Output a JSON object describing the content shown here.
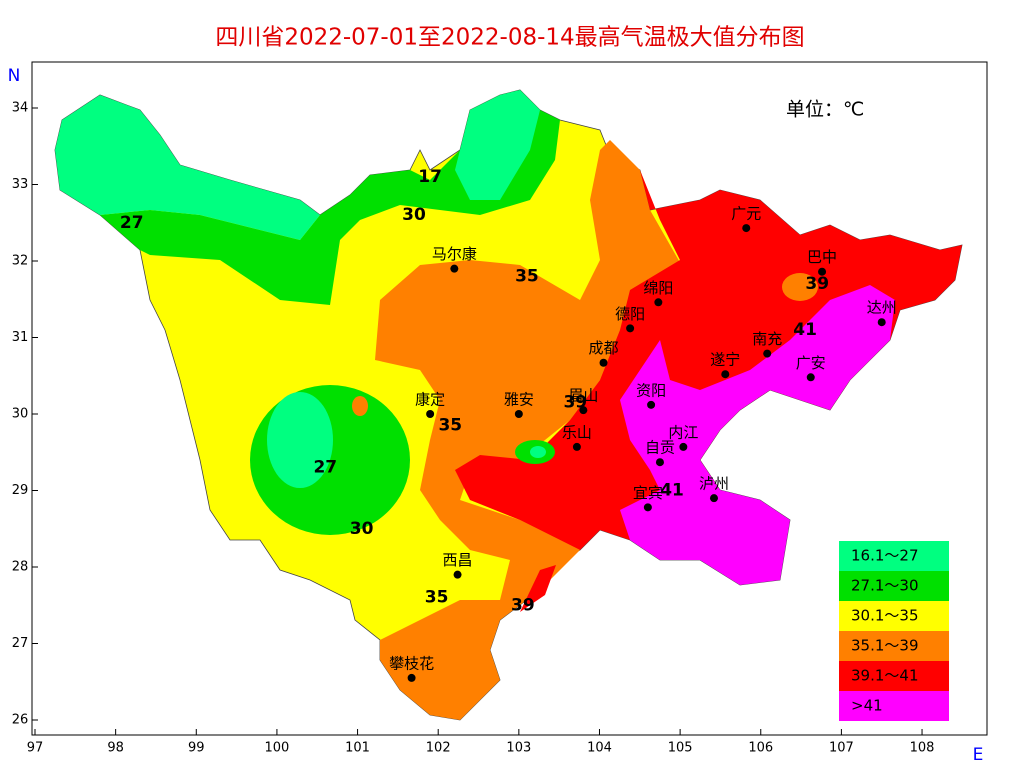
{
  "title": "四川省2022-07-01至2022-08-14最高气温极大值分布图",
  "unit": "单位：℃",
  "axes": {
    "x_label": "E",
    "y_label": "N",
    "xticks": [
      97,
      98,
      99,
      100,
      101,
      102,
      103,
      104,
      105,
      106,
      107,
      108
    ],
    "yticks": [
      26,
      27,
      28,
      29,
      30,
      31,
      32,
      33,
      34
    ]
  },
  "legend": [
    {
      "label": "16.1～27",
      "color": "#00ff80"
    },
    {
      "label": "27.1～30",
      "color": "#00e000"
    },
    {
      "label": "30.1～35",
      "color": "#ffff00"
    },
    {
      "label": "35.1～39",
      "color": "#ff8000"
    },
    {
      "label": "39.1～41",
      "color": "#ff0000"
    },
    {
      "label": ">41",
      "color": "#ff00ff"
    }
  ],
  "cities": [
    {
      "name": "马尔康",
      "lon": 102.2,
      "lat": 31.9
    },
    {
      "name": "康定",
      "lon": 101.9,
      "lat": 30.0
    },
    {
      "name": "雅安",
      "lon": 103.0,
      "lat": 30.0
    },
    {
      "name": "眉山",
      "lon": 103.8,
      "lat": 30.05
    },
    {
      "name": "成都",
      "lon": 104.05,
      "lat": 30.67
    },
    {
      "name": "德阳",
      "lon": 104.38,
      "lat": 31.12
    },
    {
      "name": "绵阳",
      "lon": 104.73,
      "lat": 31.46
    },
    {
      "name": "广元",
      "lon": 105.82,
      "lat": 32.43
    },
    {
      "name": "巴中",
      "lon": 106.76,
      "lat": 31.86
    },
    {
      "name": "达州",
      "lon": 107.5,
      "lat": 31.2
    },
    {
      "name": "南充",
      "lon": 106.08,
      "lat": 30.79
    },
    {
      "name": "遂宁",
      "lon": 105.56,
      "lat": 30.52
    },
    {
      "name": "广安",
      "lon": 106.62,
      "lat": 30.48
    },
    {
      "name": "资阳",
      "lon": 104.64,
      "lat": 30.12
    },
    {
      "name": "内江",
      "lon": 105.04,
      "lat": 29.57
    },
    {
      "name": "自贡",
      "lon": 104.75,
      "lat": 29.37
    },
    {
      "name": "乐山",
      "lon": 103.72,
      "lat": 29.57
    },
    {
      "name": "宜宾",
      "lon": 104.6,
      "lat": 28.78
    },
    {
      "name": "泸州",
      "lon": 105.42,
      "lat": 28.9
    },
    {
      "name": "西昌",
      "lon": 102.24,
      "lat": 27.9
    },
    {
      "name": "攀枝花",
      "lon": 101.67,
      "lat": 26.55
    }
  ],
  "contour_labels": [
    {
      "text": "27",
      "lon": 98.2,
      "lat": 32.5
    },
    {
      "text": "30",
      "lon": 101.7,
      "lat": 32.6
    },
    {
      "text": "35",
      "lon": 103.1,
      "lat": 31.8
    },
    {
      "text": "39",
      "lon": 106.7,
      "lat": 31.7
    },
    {
      "text": "41",
      "lon": 106.55,
      "lat": 31.1
    },
    {
      "text": "27",
      "lon": 100.6,
      "lat": 29.3
    },
    {
      "text": "30",
      "lon": 101.05,
      "lat": 28.5
    },
    {
      "text": "35",
      "lon": 102.15,
      "lat": 29.85
    },
    {
      "text": "39",
      "lon": 103.7,
      "lat": 30.15
    },
    {
      "text": "41",
      "lon": 104.9,
      "lat": 29.0
    },
    {
      "text": "35",
      "lon": 101.98,
      "lat": 27.6
    },
    {
      "text": "39",
      "lon": 103.05,
      "lat": 27.5
    },
    {
      "text": "17",
      "lon": 101.9,
      "lat": 33.1
    }
  ]
}
